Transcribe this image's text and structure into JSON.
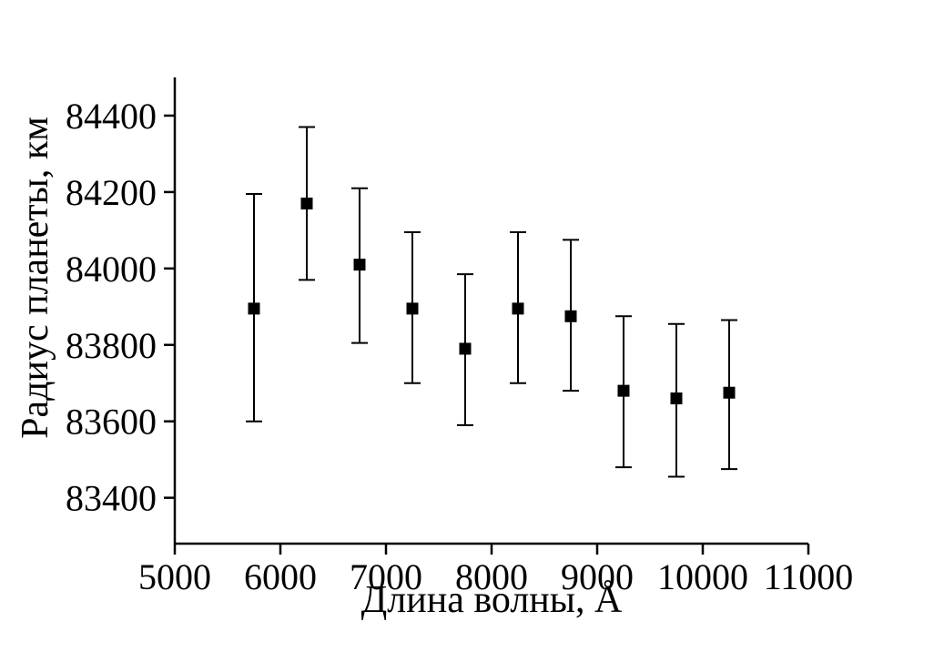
{
  "canvas": {
    "background": "#ffffff",
    "axis_color": "#000000",
    "marker_color": "#000000"
  },
  "chart_data": {
    "type": "scatter",
    "title": "",
    "xlabel": "Длина волны, Å",
    "ylabel": "Радиус планеты, км",
    "xlim": [
      5000,
      11000
    ],
    "ylim": [
      83280,
      84500
    ],
    "x_ticks": [
      5000,
      6000,
      7000,
      8000,
      9000,
      10000,
      11000
    ],
    "y_ticks": [
      83400,
      83600,
      83800,
      84000,
      84200,
      84400
    ],
    "grid": false,
    "legend_position": "none",
    "marker": "filled-square",
    "error_bars": "vertical-asymmetric-with-caps",
    "series": [
      {
        "name": "planet-radius-vs-wavelength",
        "x": [
          5750,
          6250,
          6750,
          7250,
          7750,
          8250,
          8750,
          9250,
          9750,
          10250
        ],
        "y": [
          83895,
          84170,
          84010,
          83895,
          83790,
          83895,
          83875,
          83680,
          83660,
          83675
        ],
        "y_err_upper": [
          84195,
          84370,
          84210,
          84095,
          83985,
          84095,
          84075,
          83875,
          83855,
          83865
        ],
        "y_err_lower": [
          83600,
          83970,
          83805,
          83700,
          83590,
          83700,
          83680,
          83480,
          83455,
          83475
        ]
      }
    ]
  }
}
